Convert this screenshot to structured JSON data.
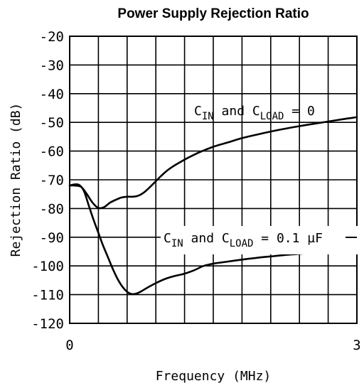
{
  "chart_data": {
    "type": "line",
    "title": "Power Supply Rejection Ratio",
    "xlabel": "Frequency (MHz)",
    "ylabel": "Rejection Ratio (dB)",
    "xlim": [
      0,
      3
    ],
    "ylim": [
      -120,
      -20
    ],
    "x_tick_labels": [
      "0",
      "3"
    ],
    "y_ticks": [
      -20,
      -30,
      -40,
      -50,
      -60,
      -70,
      -80,
      -90,
      -100,
      -110,
      -120
    ],
    "y_tick_labels": [
      "-20",
      "-30",
      "-40",
      "-50",
      "-60",
      "-70",
      "-80",
      "-90",
      "-100",
      "-110",
      "-120"
    ],
    "x_grid_divisions": 10,
    "grid": true,
    "series": [
      {
        "annotation": {
          "prefix": "C",
          "sub1": "IN",
          "middle": " and C",
          "sub2": "LOAD",
          "suffix": " = 0"
        },
        "x": [
          0,
          0.05,
          0.12,
          0.18,
          0.24,
          0.3,
          0.36,
          0.42,
          0.48,
          0.54,
          0.6,
          0.66,
          0.72,
          0.78,
          0.84,
          0.9,
          0.96,
          1.05,
          1.2,
          1.35,
          1.5,
          1.65,
          1.8,
          1.95,
          2.1,
          2.25,
          2.4,
          2.55,
          2.7,
          2.85,
          3.0
        ],
        "y": [
          -72,
          -72,
          -72.5,
          -75,
          -78,
          -79.8,
          -79.5,
          -78,
          -77,
          -76.2,
          -75.9,
          -75.9,
          -75.5,
          -74.3,
          -72.5,
          -70.5,
          -68.5,
          -66,
          -63,
          -60.5,
          -58.5,
          -57,
          -55.5,
          -54.3,
          -53.2,
          -52.2,
          -51.3,
          -50.5,
          -49.7,
          -48.9,
          -48.2
        ]
      },
      {
        "annotation": {
          "prefix": "C",
          "sub1": "IN",
          "middle": " and C",
          "sub2": "LOAD",
          "suffix": " = 0.1 µF"
        },
        "x": [
          0,
          0.05,
          0.1,
          0.15,
          0.2,
          0.25,
          0.3,
          0.35,
          0.4,
          0.45,
          0.5,
          0.55,
          0.6,
          0.65,
          0.7,
          0.75,
          0.8,
          0.9,
          1.0,
          1.1,
          1.2,
          1.3,
          1.4,
          1.5,
          1.65,
          1.8,
          1.95,
          2.1,
          2.25,
          2.4,
          2.55,
          2.7,
          2.85,
          3.0
        ],
        "y": [
          -72,
          -71.6,
          -71.8,
          -74,
          -79,
          -84,
          -88.5,
          -93,
          -97,
          -101,
          -104.5,
          -107.2,
          -109,
          -109.8,
          -109.6,
          -108.8,
          -107.8,
          -106,
          -104.5,
          -103.5,
          -102.7,
          -101.5,
          -100,
          -99.2,
          -98.5,
          -97.8,
          -97.2,
          -96.7,
          -96.2,
          -95.8,
          -95.4,
          -95.0,
          -94.7,
          -94.4
        ]
      }
    ]
  }
}
